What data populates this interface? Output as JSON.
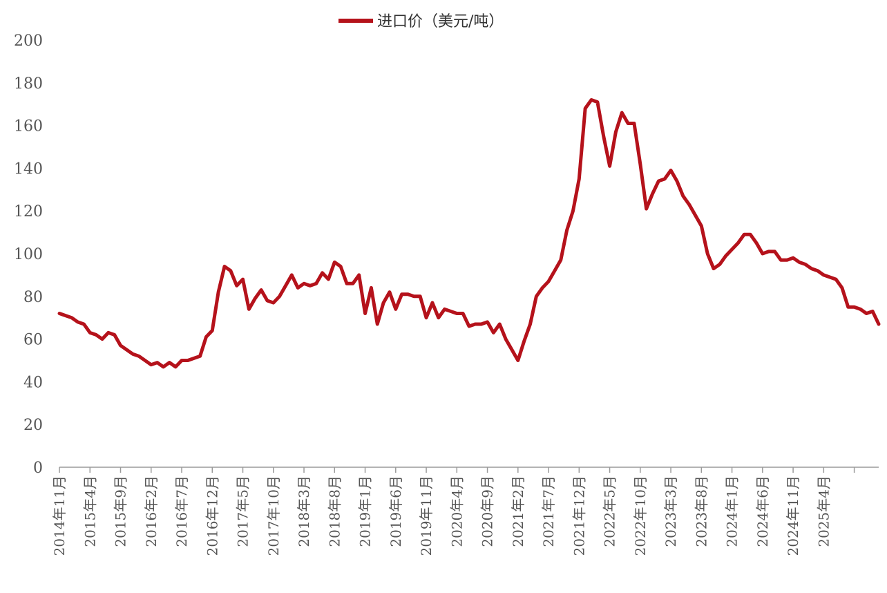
{
  "colors": {
    "series": "#B5121B",
    "axis": "#9a9a9a",
    "text": "#555555"
  },
  "chart_data": {
    "type": "line",
    "title": "",
    "xlabel": "",
    "ylabel": "",
    "ylim": [
      0,
      200
    ],
    "yticks": [
      0,
      20,
      40,
      60,
      80,
      100,
      120,
      140,
      160,
      180,
      200
    ],
    "grid": false,
    "legend_position": "top-center",
    "x_tick_labels": [
      "2014年11月",
      "2015年4月",
      "2015年9月",
      "2016年2月",
      "2016年7月",
      "2016年12月",
      "2017年5月",
      "2017年10月",
      "2018年3月",
      "2018年8月",
      "2019年1月",
      "2019年6月",
      "2019年11月",
      "2020年4月",
      "2020年9月",
      "2021年2月",
      "2021年7月",
      "2021年12月",
      "2022年5月",
      "2022年10月",
      "2023年3月",
      "2023年8月",
      "2024年1月",
      "2024年6月",
      "2024年11月",
      "2025年4月"
    ],
    "series": [
      {
        "name": "进口价（美元/吨）",
        "values": [
          72,
          71,
          70,
          68,
          67,
          63,
          62,
          60,
          63,
          62,
          57,
          55,
          53,
          52,
          50,
          48,
          49,
          47,
          49,
          47,
          50,
          50,
          51,
          52,
          61,
          64,
          82,
          94,
          92,
          85,
          88,
          74,
          79,
          83,
          78,
          77,
          80,
          85,
          90,
          84,
          86,
          85,
          86,
          91,
          88,
          96,
          94,
          86,
          86,
          90,
          72,
          84,
          67,
          77,
          82,
          74,
          81,
          81,
          80,
          80,
          70,
          77,
          70,
          74,
          73,
          72,
          72,
          66,
          67,
          67,
          68,
          63,
          67,
          60,
          55,
          50,
          59,
          67,
          80,
          84,
          87,
          92,
          97,
          111,
          120,
          135,
          168,
          172,
          171,
          155,
          141,
          157,
          166,
          161,
          161,
          142,
          121,
          128,
          134,
          135,
          139,
          134,
          127,
          123,
          118,
          113,
          100,
          93,
          95,
          99,
          102,
          105,
          109,
          109,
          105,
          100,
          101,
          101,
          97,
          97,
          98,
          96,
          95,
          93,
          92,
          90,
          89,
          88,
          84,
          75,
          75,
          74,
          72,
          73,
          67
        ]
      }
    ]
  }
}
